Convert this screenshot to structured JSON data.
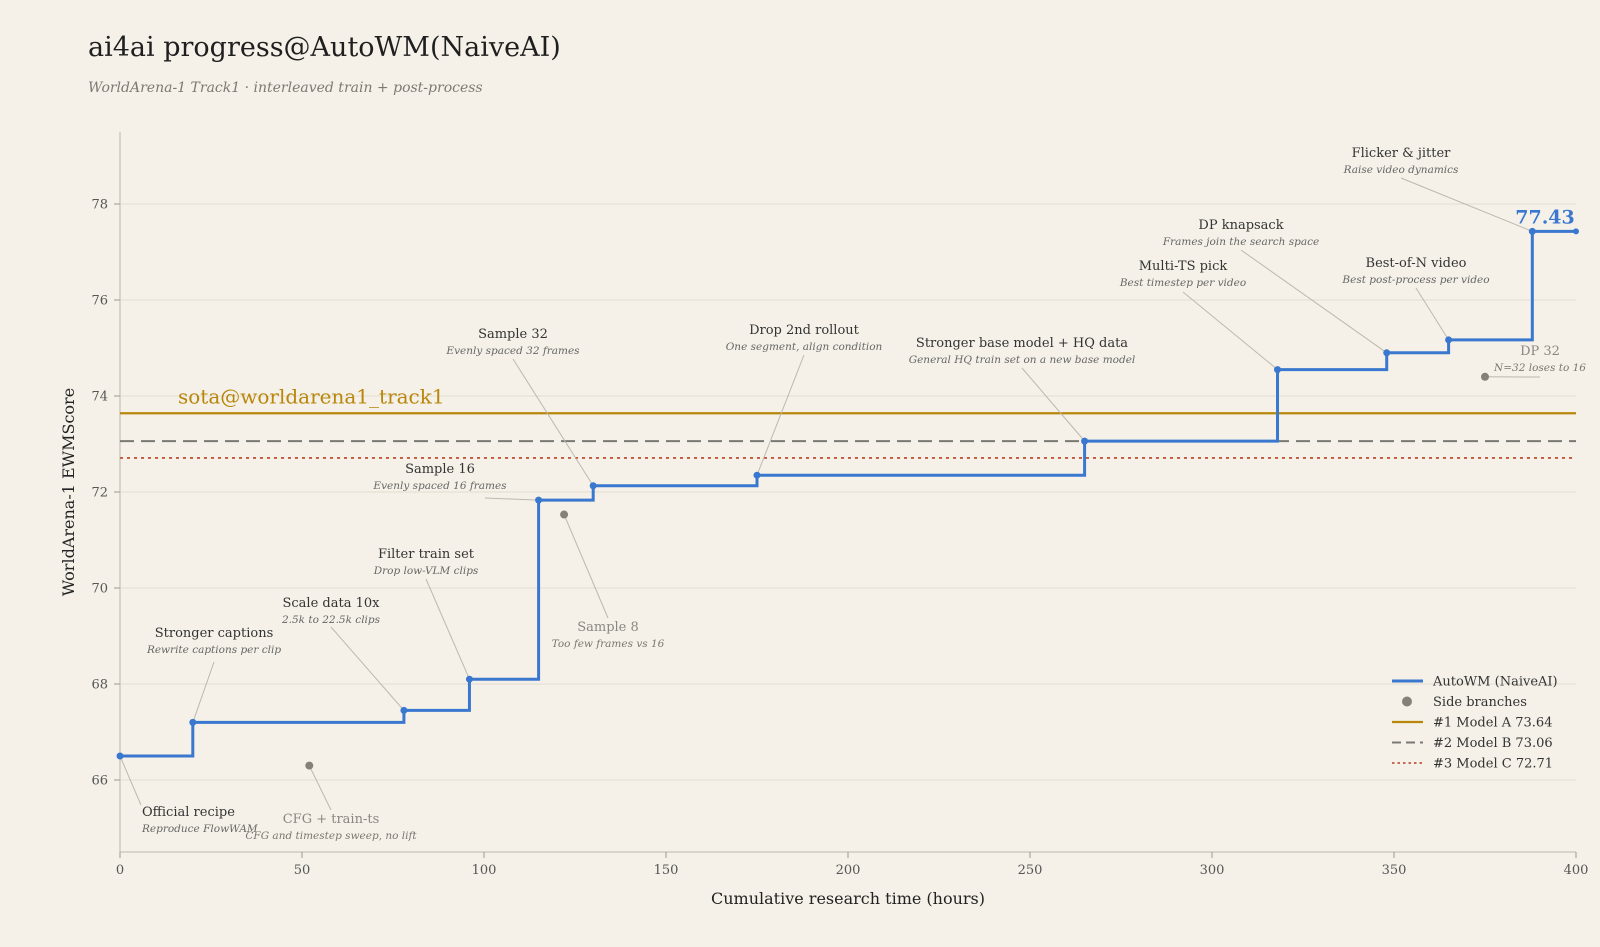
{
  "header": {
    "title": "ai4ai progress@AutoWM(NaiveAI)",
    "subtitle": "WorldArena-1 Track1  ·  interleaved train + post-process"
  },
  "chart_data": {
    "type": "line",
    "step": true,
    "xlabel": "Cumulative research time (hours)",
    "ylabel": "WorldArena-1 EWMScore",
    "xlim": [
      0,
      400
    ],
    "ylim": [
      64.5,
      79.5
    ],
    "xticks": [
      0,
      50,
      100,
      150,
      200,
      250,
      300,
      350,
      400
    ],
    "yticks": [
      66,
      68,
      70,
      72,
      74,
      76,
      78
    ],
    "grid": "horizontal",
    "legend_position": "bottom-right",
    "colors": {
      "main": "#3a78cf",
      "side": "#858178",
      "sota": "#b8860b",
      "model_b": "#7a7873",
      "model_c": "#c0583a",
      "connector": "#bdb8ae"
    },
    "final_label": "77.43",
    "sota_label": "sota@worldarena1_track1",
    "main_series": {
      "name": "AutoWM (NaiveAI)",
      "points": [
        {
          "x": 0,
          "y": 66.5,
          "title": "Official recipe",
          "sub": "Reproduce FlowWAM"
        },
        {
          "x": 20,
          "y": 67.2,
          "title": "Stronger captions",
          "sub": "Rewrite captions per clip"
        },
        {
          "x": 78,
          "y": 67.45,
          "title": "Scale data 10x",
          "sub": "2.5k to 22.5k clips"
        },
        {
          "x": 96,
          "y": 68.1,
          "title": "Filter train set",
          "sub": "Drop low-VLM clips"
        },
        {
          "x": 115,
          "y": 71.83,
          "title": "Sample 16",
          "sub": "Evenly spaced 16 frames"
        },
        {
          "x": 130,
          "y": 72.13,
          "title": "Sample 32",
          "sub": "Evenly spaced 32 frames"
        },
        {
          "x": 175,
          "y": 72.35,
          "title": "Drop 2nd rollout",
          "sub": "One segment, align condition"
        },
        {
          "x": 265,
          "y": 73.06,
          "title": "Stronger base model + HQ data",
          "sub": "General HQ train set on a new base model"
        },
        {
          "x": 318,
          "y": 74.55,
          "title": "Multi-TS pick",
          "sub": "Best timestep per video"
        },
        {
          "x": 348,
          "y": 74.9,
          "title": "DP knapsack",
          "sub": "Frames join the search space"
        },
        {
          "x": 365,
          "y": 75.17,
          "title": "Best-of-N video",
          "sub": "Best post-process per video"
        },
        {
          "x": 388,
          "y": 77.43,
          "title": "Flicker & jitter",
          "sub": "Raise video dynamics"
        }
      ],
      "end_x": 400
    },
    "side_branches": {
      "name": "Side branches",
      "points": [
        {
          "x": 52,
          "y": 66.3,
          "title": "CFG + train-ts",
          "sub": "CFG and timestep sweep, no lift"
        },
        {
          "x": 122,
          "y": 71.53,
          "title": "Sample 8",
          "sub": "Too few frames vs 16"
        },
        {
          "x": 375,
          "y": 74.4,
          "title": "DP 32",
          "sub": "N=32 loses to 16"
        }
      ]
    },
    "reference_lines": [
      {
        "name": "#1 Model A",
        "value": 73.64,
        "value_label": "73.64",
        "style": "solid"
      },
      {
        "name": "#2 Model B",
        "value": 73.06,
        "value_label": "73.06",
        "style": "dashed"
      },
      {
        "name": "#3 Model C",
        "value": 72.71,
        "value_label": "72.71",
        "style": "dotted"
      }
    ]
  }
}
